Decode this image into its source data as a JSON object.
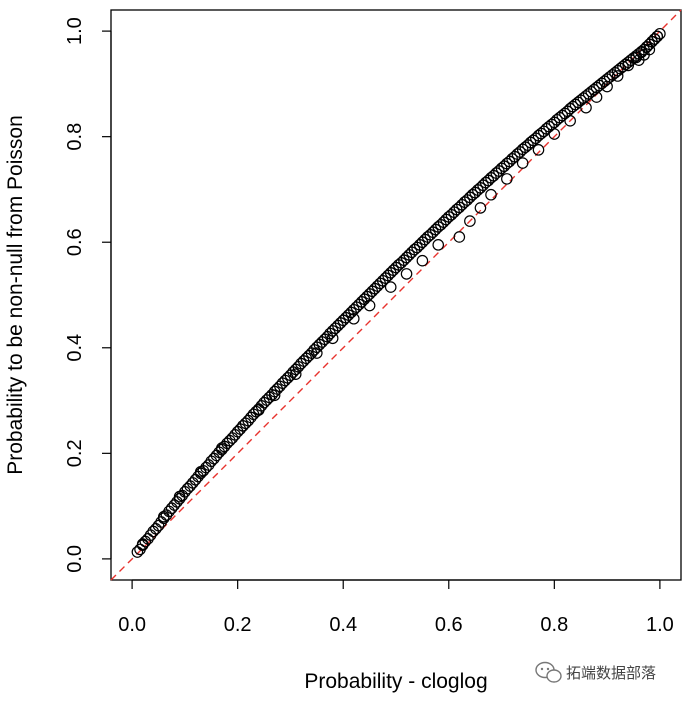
{
  "chart_data": {
    "type": "scatter",
    "title": "",
    "xlabel": "Probability - cloglog",
    "ylabel": "Probability to be non-null from Poisson",
    "xlim": [
      -0.04,
      1.04
    ],
    "ylim": [
      -0.04,
      1.04
    ],
    "x_ticks": [
      "0.0",
      "0.2",
      "0.4",
      "0.6",
      "0.8",
      "1.0"
    ],
    "y_ticks": [
      "0.0",
      "0.2",
      "0.4",
      "0.6",
      "0.8",
      "1.0"
    ],
    "grid": false,
    "marker": "open-circle",
    "reference_line": {
      "slope": 1,
      "intercept": 0,
      "style": "dashed",
      "color": "#e8322d"
    },
    "x": [
      0.01,
      0.015,
      0.02,
      0.025,
      0.03,
      0.035,
      0.04,
      0.045,
      0.05,
      0.055,
      0.06,
      0.065,
      0.07,
      0.075,
      0.08,
      0.085,
      0.09,
      0.095,
      0.1,
      0.105,
      0.11,
      0.115,
      0.12,
      0.125,
      0.13,
      0.135,
      0.14,
      0.145,
      0.15,
      0.155,
      0.16,
      0.165,
      0.17,
      0.175,
      0.18,
      0.185,
      0.19,
      0.195,
      0.2,
      0.205,
      0.21,
      0.215,
      0.22,
      0.225,
      0.23,
      0.235,
      0.24,
      0.245,
      0.25,
      0.255,
      0.26,
      0.265,
      0.27,
      0.275,
      0.28,
      0.285,
      0.29,
      0.295,
      0.3,
      0.305,
      0.31,
      0.315,
      0.32,
      0.325,
      0.33,
      0.335,
      0.34,
      0.345,
      0.35,
      0.355,
      0.36,
      0.365,
      0.37,
      0.375,
      0.38,
      0.385,
      0.39,
      0.395,
      0.4,
      0.405,
      0.41,
      0.415,
      0.42,
      0.425,
      0.43,
      0.435,
      0.44,
      0.445,
      0.45,
      0.455,
      0.46,
      0.465,
      0.47,
      0.475,
      0.48,
      0.485,
      0.49,
      0.495,
      0.5,
      0.505,
      0.51,
      0.515,
      0.52,
      0.525,
      0.53,
      0.535,
      0.54,
      0.545,
      0.55,
      0.555,
      0.56,
      0.565,
      0.57,
      0.575,
      0.58,
      0.585,
      0.59,
      0.595,
      0.6,
      0.605,
      0.61,
      0.615,
      0.62,
      0.625,
      0.63,
      0.635,
      0.64,
      0.645,
      0.65,
      0.655,
      0.66,
      0.665,
      0.67,
      0.675,
      0.68,
      0.685,
      0.69,
      0.695,
      0.7,
      0.705,
      0.71,
      0.715,
      0.72,
      0.725,
      0.73,
      0.735,
      0.74,
      0.745,
      0.75,
      0.755,
      0.76,
      0.765,
      0.77,
      0.775,
      0.78,
      0.785,
      0.79,
      0.795,
      0.8,
      0.805,
      0.81,
      0.815,
      0.82,
      0.825,
      0.83,
      0.835,
      0.84,
      0.845,
      0.85,
      0.855,
      0.86,
      0.865,
      0.87,
      0.875,
      0.88,
      0.885,
      0.89,
      0.895,
      0.9,
      0.905,
      0.91,
      0.915,
      0.92,
      0.925,
      0.93,
      0.935,
      0.94,
      0.945,
      0.95,
      0.955,
      0.96,
      0.965,
      0.97,
      0.975,
      0.98,
      0.985,
      0.99,
      0.995,
      1.0,
      0.02,
      0.06,
      0.09,
      0.13,
      0.17,
      0.21,
      0.24,
      0.27,
      0.31,
      0.35,
      0.38,
      0.42,
      0.45,
      0.49,
      0.52,
      0.55,
      0.58,
      0.62,
      0.64,
      0.66,
      0.68,
      0.71,
      0.74,
      0.77,
      0.8,
      0.83,
      0.86,
      0.88,
      0.9,
      0.92,
      0.94,
      0.955,
      0.965,
      0.975,
      0.985,
      0.99,
      0.995,
      0.97,
      0.98,
      0.96
    ],
    "y": [
      0.013,
      0.018,
      0.026,
      0.033,
      0.038,
      0.045,
      0.052,
      0.057,
      0.063,
      0.07,
      0.077,
      0.083,
      0.09,
      0.096,
      0.102,
      0.108,
      0.114,
      0.12,
      0.127,
      0.133,
      0.138,
      0.144,
      0.15,
      0.156,
      0.162,
      0.167,
      0.173,
      0.178,
      0.185,
      0.19,
      0.196,
      0.202,
      0.207,
      0.213,
      0.219,
      0.224,
      0.229,
      0.235,
      0.241,
      0.246,
      0.252,
      0.257,
      0.262,
      0.268,
      0.274,
      0.279,
      0.284,
      0.29,
      0.296,
      0.301,
      0.306,
      0.311,
      0.317,
      0.322,
      0.327,
      0.333,
      0.338,
      0.343,
      0.348,
      0.354,
      0.359,
      0.364,
      0.37,
      0.375,
      0.38,
      0.385,
      0.39,
      0.396,
      0.401,
      0.406,
      0.411,
      0.416,
      0.421,
      0.427,
      0.432,
      0.437,
      0.442,
      0.447,
      0.452,
      0.457,
      0.462,
      0.467,
      0.472,
      0.477,
      0.482,
      0.487,
      0.492,
      0.497,
      0.502,
      0.507,
      0.512,
      0.517,
      0.522,
      0.527,
      0.532,
      0.537,
      0.542,
      0.547,
      0.552,
      0.557,
      0.561,
      0.566,
      0.571,
      0.576,
      0.581,
      0.586,
      0.59,
      0.595,
      0.6,
      0.605,
      0.61,
      0.614,
      0.619,
      0.624,
      0.629,
      0.633,
      0.638,
      0.643,
      0.648,
      0.652,
      0.657,
      0.662,
      0.666,
      0.671,
      0.676,
      0.68,
      0.685,
      0.69,
      0.694,
      0.699,
      0.703,
      0.708,
      0.713,
      0.717,
      0.722,
      0.726,
      0.731,
      0.735,
      0.74,
      0.744,
      0.749,
      0.753,
      0.758,
      0.762,
      0.767,
      0.771,
      0.776,
      0.78,
      0.784,
      0.789,
      0.793,
      0.797,
      0.802,
      0.806,
      0.81,
      0.815,
      0.819,
      0.823,
      0.827,
      0.832,
      0.836,
      0.84,
      0.844,
      0.848,
      0.853,
      0.857,
      0.861,
      0.865,
      0.869,
      0.873,
      0.877,
      0.881,
      0.885,
      0.889,
      0.893,
      0.897,
      0.901,
      0.905,
      0.909,
      0.913,
      0.917,
      0.921,
      0.925,
      0.929,
      0.933,
      0.937,
      0.941,
      0.945,
      0.949,
      0.953,
      0.957,
      0.961,
      0.965,
      0.97,
      0.975,
      0.98,
      0.985,
      0.99,
      0.995,
      0.028,
      0.08,
      0.118,
      0.165,
      0.21,
      0.252,
      0.282,
      0.31,
      0.35,
      0.39,
      0.418,
      0.455,
      0.48,
      0.515,
      0.54,
      0.565,
      0.595,
      0.61,
      0.64,
      0.665,
      0.69,
      0.72,
      0.75,
      0.775,
      0.805,
      0.83,
      0.855,
      0.875,
      0.895,
      0.915,
      0.935,
      0.95,
      0.96,
      0.97,
      0.98,
      0.985,
      0.99,
      0.955,
      0.965,
      0.945
    ]
  },
  "watermark": {
    "text": "拓端数据部落",
    "icon": "wechat-icon"
  }
}
